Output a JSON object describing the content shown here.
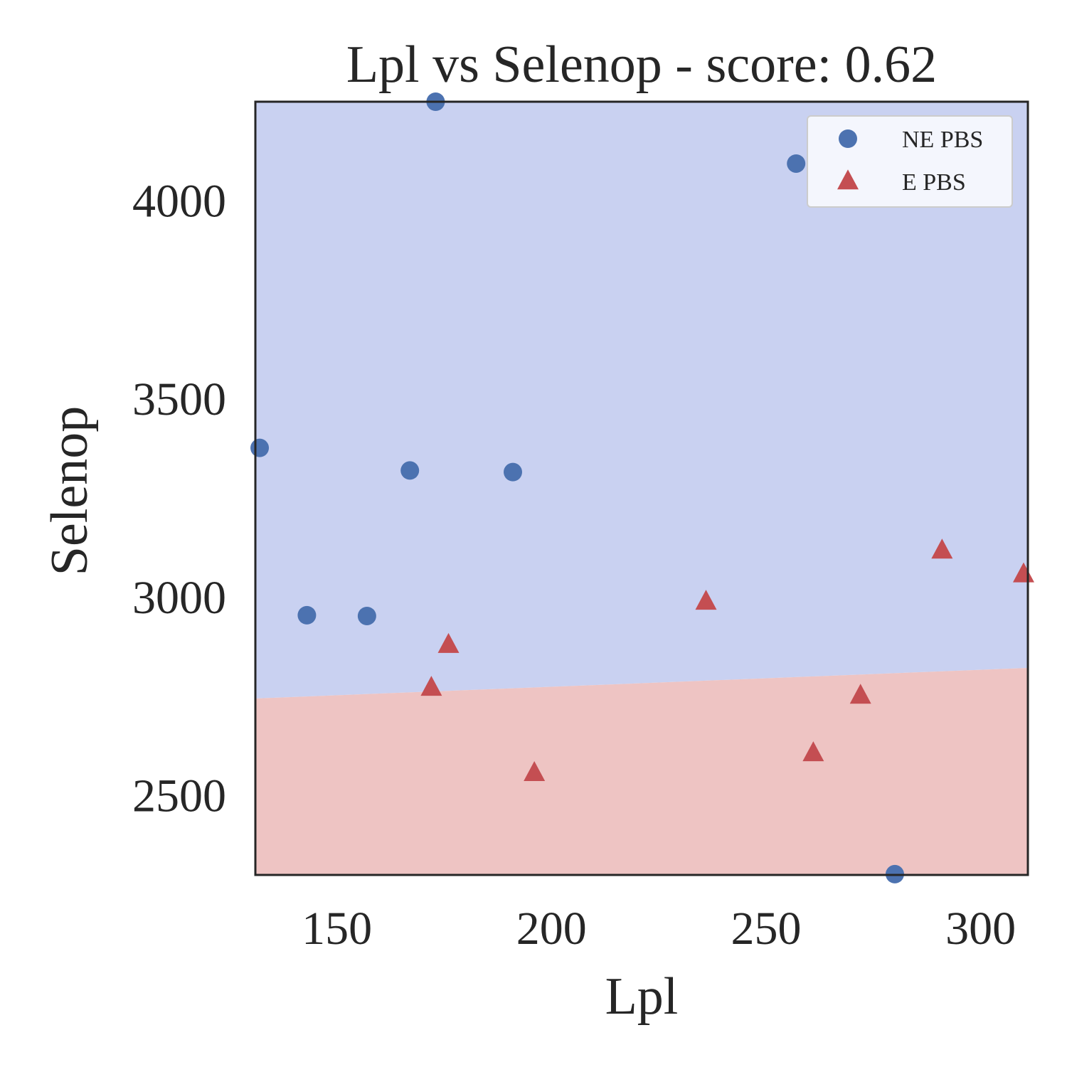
{
  "chart_data": {
    "type": "scatter",
    "title": "Lpl vs Selenop - score: 0.62",
    "xlabel": "Lpl",
    "ylabel": "Selenop",
    "xlim": [
      131,
      311
    ],
    "ylim": [
      2300,
      4250
    ],
    "xticks": [
      150,
      200,
      250,
      300
    ],
    "yticks": [
      2500,
      3000,
      3500,
      4000
    ],
    "grid": false,
    "legend_position": "top-right",
    "decision_boundary": {
      "x": [
        131,
        311
      ],
      "y": [
        2745,
        2822
      ],
      "above_class": "NE PBS",
      "below_class": "E PBS",
      "above_color": "#c9d1f1",
      "below_color": "#eec4c3"
    },
    "series": [
      {
        "name": "NE PBS",
        "marker": "circle",
        "color": "#4c72b0",
        "points": [
          {
            "x": 132,
            "y": 3377
          },
          {
            "x": 143,
            "y": 2955
          },
          {
            "x": 157,
            "y": 2953
          },
          {
            "x": 167,
            "y": 3320
          },
          {
            "x": 173,
            "y": 4250
          },
          {
            "x": 191,
            "y": 3316
          },
          {
            "x": 257,
            "y": 4094
          },
          {
            "x": 280,
            "y": 2302
          }
        ]
      },
      {
        "name": "E PBS",
        "marker": "triangle",
        "color": "#c44e52",
        "points": [
          {
            "x": 172,
            "y": 2772
          },
          {
            "x": 176,
            "y": 2880
          },
          {
            "x": 196,
            "y": 2557
          },
          {
            "x": 236,
            "y": 2989
          },
          {
            "x": 261,
            "y": 2607
          },
          {
            "x": 272,
            "y": 2752
          },
          {
            "x": 291,
            "y": 3118
          },
          {
            "x": 310,
            "y": 3058
          }
        ]
      }
    ]
  }
}
